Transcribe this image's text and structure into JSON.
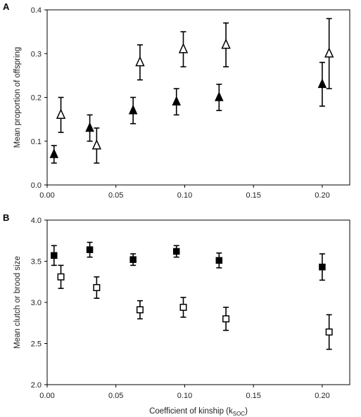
{
  "chart_data": [
    {
      "panel": "A",
      "type": "scatter",
      "xlim": [
        0,
        0.22
      ],
      "ylim": [
        0,
        0.4
      ],
      "xticks": [
        "0.00",
        "0.05",
        "0.10",
        "0.15",
        "0.20"
      ],
      "yticks": [
        "0.0",
        "0.1",
        "0.2",
        "0.3",
        "0.4"
      ],
      "xtick_values": [
        0,
        0.05,
        0.1,
        0.15,
        0.2
      ],
      "ytick_values": [
        0,
        0.1,
        0.2,
        0.3,
        0.4
      ],
      "xlabel": "",
      "ylabel": "Mean proportion of offspring",
      "error_bars": true,
      "series": [
        {
          "marker": "filled-triangle",
          "color": "#000000",
          "points": [
            {
              "x": 0.005,
              "y": 0.07,
              "lo": 0.05,
              "hi": 0.09
            },
            {
              "x": 0.031,
              "y": 0.13,
              "lo": 0.1,
              "hi": 0.16
            },
            {
              "x": 0.0625,
              "y": 0.17,
              "lo": 0.14,
              "hi": 0.2
            },
            {
              "x": 0.094,
              "y": 0.19,
              "lo": 0.16,
              "hi": 0.22
            },
            {
              "x": 0.125,
              "y": 0.2,
              "lo": 0.17,
              "hi": 0.23
            },
            {
              "x": 0.2,
              "y": 0.23,
              "lo": 0.18,
              "hi": 0.28
            }
          ]
        },
        {
          "marker": "open-triangle",
          "color": "#000000",
          "points": [
            {
              "x": 0.01,
              "y": 0.16,
              "lo": 0.12,
              "hi": 0.2
            },
            {
              "x": 0.036,
              "y": 0.09,
              "lo": 0.05,
              "hi": 0.13
            },
            {
              "x": 0.0675,
              "y": 0.28,
              "lo": 0.24,
              "hi": 0.32
            },
            {
              "x": 0.099,
              "y": 0.31,
              "lo": 0.27,
              "hi": 0.35
            },
            {
              "x": 0.13,
              "y": 0.32,
              "lo": 0.27,
              "hi": 0.37
            },
            {
              "x": 0.205,
              "y": 0.3,
              "lo": 0.22,
              "hi": 0.38
            }
          ]
        }
      ]
    },
    {
      "panel": "B",
      "type": "scatter",
      "xlim": [
        0,
        0.22
      ],
      "ylim": [
        2.0,
        4.0
      ],
      "xticks": [
        "0.00",
        "0.05",
        "0.10",
        "0.15",
        "0.20"
      ],
      "yticks": [
        "2.0",
        "2.5",
        "3.0",
        "3.5",
        "4.0"
      ],
      "xtick_values": [
        0,
        0.05,
        0.1,
        0.15,
        0.2
      ],
      "ytick_values": [
        2.0,
        2.5,
        3.0,
        3.5,
        4.0
      ],
      "xlabel": "Coefficient of kinship (k",
      "xlabel_subscript": "SOC",
      "xlabel_suffix": ")",
      "ylabel": "Mean clutch or brood size",
      "error_bars": true,
      "series": [
        {
          "marker": "filled-square",
          "color": "#000000",
          "points": [
            {
              "x": 0.005,
              "y": 3.57,
              "lo": 3.45,
              "hi": 3.69
            },
            {
              "x": 0.031,
              "y": 3.64,
              "lo": 3.55,
              "hi": 3.73
            },
            {
              "x": 0.0625,
              "y": 3.52,
              "lo": 3.45,
              "hi": 3.59
            },
            {
              "x": 0.094,
              "y": 3.62,
              "lo": 3.55,
              "hi": 3.69
            },
            {
              "x": 0.125,
              "y": 3.51,
              "lo": 3.42,
              "hi": 3.6
            },
            {
              "x": 0.2,
              "y": 3.43,
              "lo": 3.27,
              "hi": 3.59
            }
          ]
        },
        {
          "marker": "open-square",
          "color": "#000000",
          "points": [
            {
              "x": 0.01,
              "y": 3.31,
              "lo": 3.17,
              "hi": 3.45
            },
            {
              "x": 0.036,
              "y": 3.18,
              "lo": 3.05,
              "hi": 3.31
            },
            {
              "x": 0.0675,
              "y": 2.91,
              "lo": 2.8,
              "hi": 3.02
            },
            {
              "x": 0.099,
              "y": 2.94,
              "lo": 2.82,
              "hi": 3.06
            },
            {
              "x": 0.13,
              "y": 2.8,
              "lo": 2.66,
              "hi": 2.94
            },
            {
              "x": 0.205,
              "y": 2.64,
              "lo": 2.43,
              "hi": 2.85
            }
          ]
        }
      ]
    }
  ]
}
